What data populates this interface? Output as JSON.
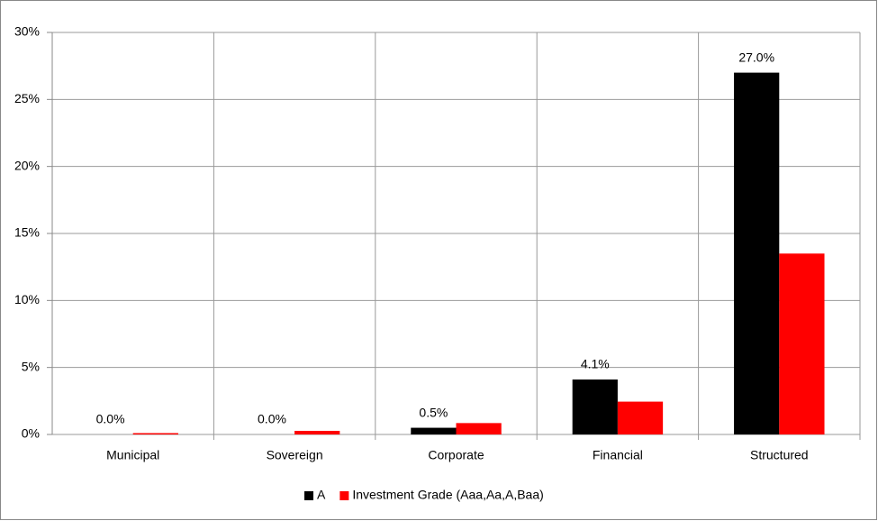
{
  "chart_data": {
    "type": "bar",
    "categories": [
      "Municipal",
      "Sovereign",
      "Corporate",
      "Financial",
      "Structured"
    ],
    "series": [
      {
        "name": "A",
        "color": "#000000",
        "values": [
          0.0,
          0.0,
          0.5,
          4.1,
          27.0
        ],
        "value_labels": [
          "0.0%",
          "0.0%",
          "0.5%",
          "4.1%",
          "27.0%"
        ]
      },
      {
        "name": "Investment Grade (Aaa,Aa,A,Baa)",
        "color": "#ff0000",
        "values": [
          0.1,
          0.27,
          0.85,
          2.45,
          13.5
        ]
      }
    ],
    "ylim": [
      0,
      30
    ],
    "yticks": [
      {
        "value": 0,
        "label": "0%"
      },
      {
        "value": 5,
        "label": "5%"
      },
      {
        "value": 10,
        "label": "10%"
      },
      {
        "value": 15,
        "label": "15%"
      },
      {
        "value": 20,
        "label": "20%"
      },
      {
        "value": 25,
        "label": "25%"
      },
      {
        "value": 30,
        "label": "30%"
      }
    ],
    "grid": true,
    "legend": "bottom"
  }
}
